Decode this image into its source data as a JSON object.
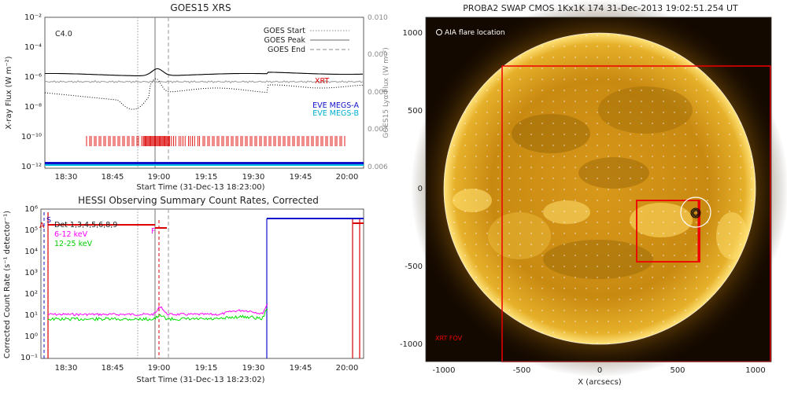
{
  "chart_data": [
    {
      "type": "line",
      "title": "GOES15 XRS",
      "xlabel": "Start Time (31-Dec-13 18:23:00)",
      "ylabel": "X-ray Flux (W m⁻²)",
      "ylabel_right": "GOES15 Lyα Flux (W m⁻²)",
      "flare_class": "C4.0",
      "x_ticks": [
        "18:30",
        "18:45",
        "19:00",
        "19:15",
        "19:30",
        "19:45",
        "20:00"
      ],
      "y_ticks": [
        "10⁻²",
        "10⁻⁴",
        "10⁻⁶",
        "10⁻⁸",
        "10⁻¹⁰",
        "10⁻¹²"
      ],
      "y_ticks_right": [
        "0.010",
        "0.009",
        "0.008",
        "0.007",
        "0.006"
      ],
      "legend": [
        "GOES Start",
        "GOES Peak",
        "GOES End"
      ],
      "markers": {
        "start": "18:55",
        "peak": "19:00",
        "end": "19:03"
      },
      "labels": {
        "xrt": "XRT",
        "megs_a": "EVE MEGS-A",
        "megs_b": "EVE MEGS-B"
      }
    },
    {
      "type": "line",
      "title": "HESSI Observing Summary Count Rates, Corrected",
      "xlabel": "Start Time (31-Dec-13 18:23:02)",
      "ylabel": "Corrected Count Rate (s⁻¹ detector⁻¹)",
      "x_ticks": [
        "18:30",
        "18:45",
        "19:00",
        "19:15",
        "19:30",
        "19:45",
        "20:00"
      ],
      "y_ticks": [
        "10⁶",
        "10⁵",
        "10⁴",
        "10³",
        "10²",
        "10¹",
        "10⁰",
        "10⁻¹"
      ],
      "detectors": "Det 1,3,4,5,6,8,9",
      "series": [
        {
          "name": "6-12 keV",
          "color": "#ff00ff"
        },
        {
          "name": "12-25 keV",
          "color": "#00dd00"
        }
      ],
      "flags": {
        "s": "S",
        "f": "F",
        "a": "A"
      }
    }
  ],
  "swap": {
    "title": "PROBA2 SWAP CMOS 1Kx1K 174 31-Dec-2013 19:02:51.254 UT",
    "legend_label": "AIA flare location",
    "xrt_label": "XRT FOV",
    "xlabel": "X (arcsecs)",
    "x_ticks": [
      "-1000",
      "-500",
      "0",
      "500",
      "1000"
    ],
    "y_ticks": [
      "1000",
      "500",
      "0",
      "-500",
      "-1000"
    ]
  }
}
